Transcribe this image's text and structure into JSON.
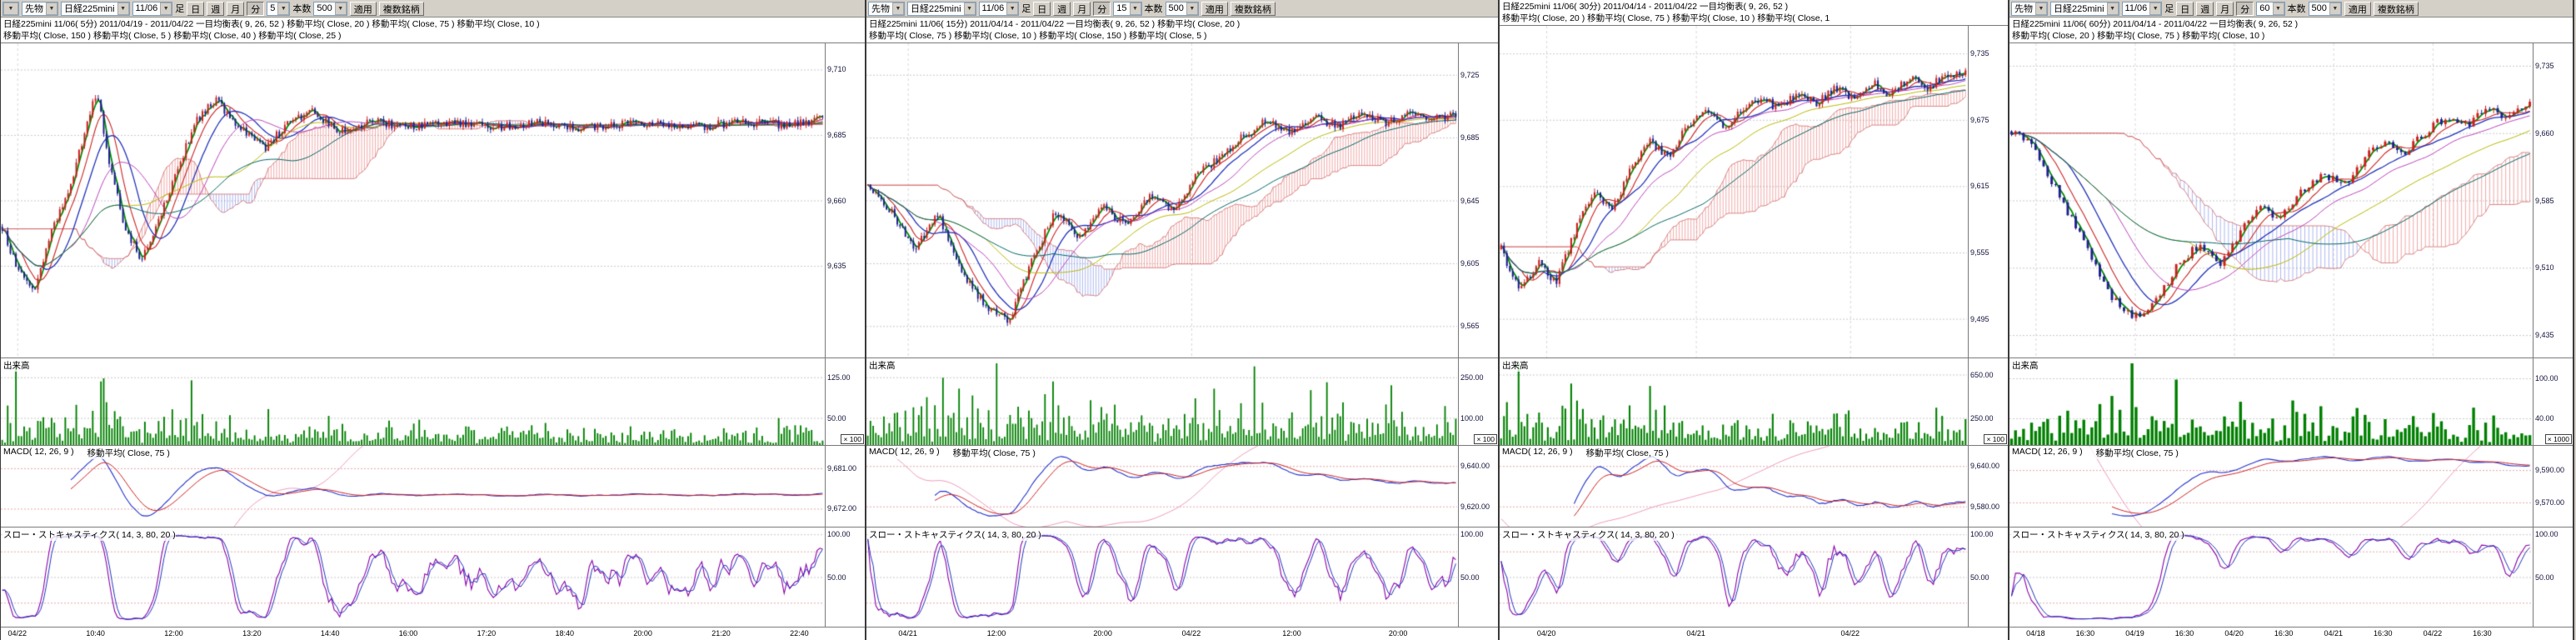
{
  "icons": {
    "dropdown_arrow": "▼"
  },
  "panels": [
    {
      "toolbar": {
        "instrument_type": "先物",
        "symbol": "日経225mini",
        "contract": "11/06",
        "bar_label": "足",
        "period_day": "日",
        "period_week": "週",
        "period_month": "月",
        "period_minute": "分",
        "interval_value": "5",
        "count_label": "本数",
        "count_value": "500",
        "apply_button": "適用",
        "multi_symbol_button": "複数銘柄"
      },
      "header_line1": "日経225mini 11/06( 5分)  2011/04/19 - 2011/04/22  一目均衡表( 9, 26, 52 )  移動平均( Close, 20 )  移動平均( Close, 75 )  移動平均( Close, 10 )",
      "header_line2": "移動平均( Close, 150 )  移動平均( Close, 5 )  移動平均( Close, 40 )  移動平均( Close, 25 )",
      "main": {
        "min": 9600,
        "max": 9720,
        "bars": 300,
        "labels": [
          "9,710",
          "9,685",
          "9,660",
          "9,635"
        ],
        "anchors": [
          [
            0,
            9650
          ],
          [
            0.02,
            9632
          ],
          [
            0.04,
            9626
          ],
          [
            0.06,
            9648
          ],
          [
            0.08,
            9662
          ],
          [
            0.1,
            9685
          ],
          [
            0.115,
            9702
          ],
          [
            0.13,
            9676
          ],
          [
            0.15,
            9648
          ],
          [
            0.17,
            9638
          ],
          [
            0.19,
            9652
          ],
          [
            0.21,
            9668
          ],
          [
            0.235,
            9690
          ],
          [
            0.26,
            9698
          ],
          [
            0.29,
            9688
          ],
          [
            0.32,
            9680
          ],
          [
            0.35,
            9690
          ],
          [
            0.38,
            9694
          ],
          [
            0.41,
            9686
          ],
          [
            0.45,
            9690
          ],
          [
            0.5,
            9688
          ],
          [
            0.55,
            9690
          ],
          [
            0.6,
            9688
          ],
          [
            0.65,
            9690
          ],
          [
            0.7,
            9688
          ],
          [
            0.75,
            9689
          ],
          [
            0.8,
            9690
          ],
          [
            0.85,
            9688
          ],
          [
            0.9,
            9690
          ],
          [
            0.95,
            9689
          ],
          [
            1,
            9691
          ]
        ]
      },
      "volume": {
        "label": "出来高",
        "max": 160,
        "labels": [
          "125.00",
          "50.00"
        ],
        "unit": "× 100"
      },
      "macd": {
        "label": "MACD( 12, 26, 9 )",
        "ma_label": "移動平均( Close, 75 )",
        "min": 9668,
        "max": 9686,
        "labels": [
          "9,681.00",
          "9,672.00"
        ]
      },
      "stoch": {
        "label": "スロー・ストキャスティクス( 14, 3, 80, 20 )",
        "min": -8,
        "max": 108,
        "labels": [
          "100.00",
          "50.00"
        ]
      },
      "x_labels": [
        {
          "t": "04/22",
          "p": 0.02
        },
        {
          "t": "10:40",
          "p": 0.115
        },
        {
          "t": "12:00",
          "p": 0.21
        },
        {
          "t": "13:20",
          "p": 0.305
        },
        {
          "t": "14:40",
          "p": 0.4
        },
        {
          "t": "16:00",
          "p": 0.495
        },
        {
          "t": "17:20",
          "p": 0.59
        },
        {
          "t": "18:40",
          "p": 0.685
        },
        {
          "t": "20:00",
          "p": 0.78
        },
        {
          "t": "21:20",
          "p": 0.875
        },
        {
          "t": "22:40",
          "p": 0.97
        }
      ]
    },
    {
      "toolbar": {
        "instrument_type": "先物",
        "symbol": "日経225mini",
        "contract": "11/06",
        "bar_label": "足",
        "period_day": "日",
        "period_week": "週",
        "period_month": "月",
        "period_minute": "分",
        "interval_value": "15",
        "count_label": "本数",
        "count_value": "500",
        "apply_button": "適用",
        "multi_symbol_button": "複数銘柄"
      },
      "header_line1": "日経225mini 11/06( 15分)  2011/04/14 - 2011/04/22  一目均衡表( 9, 26, 52 )  移動平均( Close, 20 )",
      "header_line2": "移動平均( Close, 75 )  移動平均( Close, 10 )  移動平均( Close, 150 )  移動平均( Close, 5 )",
      "main": {
        "min": 9545,
        "max": 9745,
        "bars": 220,
        "labels": [
          "9,725",
          "9,685",
          "9,645",
          "9,605",
          "9,565"
        ],
        "anchors": [
          [
            0,
            9655
          ],
          [
            0.04,
            9638
          ],
          [
            0.08,
            9615
          ],
          [
            0.12,
            9636
          ],
          [
            0.16,
            9600
          ],
          [
            0.2,
            9578
          ],
          [
            0.24,
            9568
          ],
          [
            0.28,
            9608
          ],
          [
            0.32,
            9638
          ],
          [
            0.36,
            9620
          ],
          [
            0.4,
            9642
          ],
          [
            0.44,
            9628
          ],
          [
            0.48,
            9648
          ],
          [
            0.52,
            9638
          ],
          [
            0.56,
            9662
          ],
          [
            0.6,
            9672
          ],
          [
            0.64,
            9686
          ],
          [
            0.68,
            9696
          ],
          [
            0.72,
            9688
          ],
          [
            0.76,
            9698
          ],
          [
            0.8,
            9692
          ],
          [
            0.84,
            9700
          ],
          [
            0.88,
            9694
          ],
          [
            0.92,
            9700
          ],
          [
            0.96,
            9696
          ],
          [
            1,
            9700
          ]
        ]
      },
      "volume": {
        "label": "出来高",
        "max": 320,
        "labels": [
          "250.00",
          "100.00"
        ],
        "unit": "× 100"
      },
      "macd": {
        "label": "MACD( 12, 26, 9 )",
        "ma_label": "移動平均( Close, 75 )",
        "min": 9610,
        "max": 9650,
        "labels": [
          "9,640.00",
          "9,620.00"
        ]
      },
      "stoch": {
        "label": "スロー・ストキャスティクス( 14, 3, 80, 20 )",
        "min": -8,
        "max": 108,
        "labels": [
          "100.00",
          "50.00"
        ]
      },
      "x_labels": [
        {
          "t": "04/21",
          "p": 0.07
        },
        {
          "t": "12:00",
          "p": 0.22
        },
        {
          "t": "20:00",
          "p": 0.4
        },
        {
          "t": "04/22",
          "p": 0.55
        },
        {
          "t": "12:00",
          "p": 0.72
        },
        {
          "t": "20:00",
          "p": 0.9
        }
      ]
    },
    {
      "header_line1": "日経225mini 11/06( 30分)  2011/04/14 - 2011/04/22  一目均衡表( 9, 26, 52 )",
      "header_line2": "移動平均( Close, 20 )  移動平均( Close, 75 )  移動平均( Close, 10 )  移動平均( Close, 1",
      "main": {
        "min": 9460,
        "max": 9760,
        "bars": 160,
        "labels": [
          "9,735",
          "9,675",
          "9,615",
          "9,555",
          "9,495"
        ],
        "anchors": [
          [
            0,
            9558
          ],
          [
            0.04,
            9520
          ],
          [
            0.08,
            9545
          ],
          [
            0.12,
            9528
          ],
          [
            0.16,
            9575
          ],
          [
            0.2,
            9608
          ],
          [
            0.24,
            9592
          ],
          [
            0.28,
            9635
          ],
          [
            0.32,
            9655
          ],
          [
            0.36,
            9642
          ],
          [
            0.4,
            9668
          ],
          [
            0.44,
            9685
          ],
          [
            0.48,
            9668
          ],
          [
            0.52,
            9682
          ],
          [
            0.56,
            9695
          ],
          [
            0.6,
            9685
          ],
          [
            0.64,
            9700
          ],
          [
            0.68,
            9690
          ],
          [
            0.72,
            9705
          ],
          [
            0.76,
            9695
          ],
          [
            0.8,
            9708
          ],
          [
            0.84,
            9698
          ],
          [
            0.88,
            9712
          ],
          [
            0.92,
            9704
          ],
          [
            0.96,
            9715
          ],
          [
            1,
            9720
          ]
        ]
      },
      "volume": {
        "label": "出来高",
        "max": 800,
        "labels": [
          "650.00",
          "250.00"
        ],
        "unit": "× 100"
      },
      "macd": {
        "label": "MACD( 12, 26, 9 )",
        "ma_label": "移動平均( Close, 75 )",
        "min": 9550,
        "max": 9670,
        "labels": [
          "9,640.00",
          "9,580.00"
        ]
      },
      "stoch": {
        "label": "スロー・ストキャスティクス( 14, 3, 80, 20 )",
        "min": -8,
        "max": 108,
        "labels": [
          "100.00",
          "50.00"
        ]
      },
      "x_labels": [
        {
          "t": "04/20",
          "p": 0.1
        },
        {
          "t": "04/21",
          "p": 0.42
        },
        {
          "t": "04/22",
          "p": 0.75
        }
      ]
    },
    {
      "toolbar": {
        "instrument_type": "先物",
        "symbol": "日経225mini",
        "contract": "11/06",
        "bar_label": "足",
        "period_day": "日",
        "period_week": "週",
        "period_month": "月",
        "period_minute": "分",
        "interval_value": "60",
        "count_label": "本数",
        "count_value": "500",
        "apply_button": "適用",
        "multi_symbol_button": "複数銘柄"
      },
      "header_line1": "日経225mini 11/06( 60分)  2011/04/14 - 2011/04/22  一目均衡表( 9, 26, 52 )",
      "header_line2": "移動平均( Close, 20 )  移動平均( Close, 75 )  移動平均( Close, 10 )",
      "main": {
        "min": 9410,
        "max": 9760,
        "bars": 130,
        "labels": [
          "9,735",
          "9,660",
          "9,585",
          "9,510",
          "9,435"
        ],
        "anchors": [
          [
            0,
            9662
          ],
          [
            0.04,
            9645
          ],
          [
            0.08,
            9605
          ],
          [
            0.12,
            9560
          ],
          [
            0.16,
            9515
          ],
          [
            0.2,
            9472
          ],
          [
            0.24,
            9455
          ],
          [
            0.28,
            9472
          ],
          [
            0.32,
            9512
          ],
          [
            0.36,
            9535
          ],
          [
            0.4,
            9512
          ],
          [
            0.44,
            9548
          ],
          [
            0.48,
            9578
          ],
          [
            0.52,
            9565
          ],
          [
            0.56,
            9595
          ],
          [
            0.6,
            9615
          ],
          [
            0.64,
            9600
          ],
          [
            0.68,
            9632
          ],
          [
            0.72,
            9652
          ],
          [
            0.76,
            9638
          ],
          [
            0.8,
            9662
          ],
          [
            0.84,
            9678
          ],
          [
            0.88,
            9668
          ],
          [
            0.92,
            9688
          ],
          [
            0.96,
            9678
          ],
          [
            1,
            9695
          ]
        ]
      },
      "volume": {
        "label": "出来高",
        "max": 130,
        "labels": [
          "100.00",
          "40.00"
        ],
        "unit": "× 1000"
      },
      "macd": {
        "label": "MACD( 12, 26, 9 )",
        "ma_label": "移動平均( Close, 75 )",
        "min": 9555,
        "max": 9605,
        "labels": [
          "9,590.00",
          "9,570.00"
        ]
      },
      "stoch": {
        "label": "スロー・ストキャスティクス( 14, 3, 80, 20 )",
        "min": -8,
        "max": 108,
        "labels": [
          "100.00",
          "50.00"
        ]
      },
      "x_labels": [
        {
          "t": "04/18",
          "p": 0.05
        },
        {
          "t": "16:30",
          "p": 0.145
        },
        {
          "t": "04/19",
          "p": 0.24
        },
        {
          "t": "16:30",
          "p": 0.335
        },
        {
          "t": "04/20",
          "p": 0.43
        },
        {
          "t": "16:30",
          "p": 0.525
        },
        {
          "t": "04/21",
          "p": 0.62
        },
        {
          "t": "16:30",
          "p": 0.715
        },
        {
          "t": "04/22",
          "p": 0.81
        },
        {
          "t": "16:30",
          "p": 0.905
        }
      ]
    }
  ]
}
